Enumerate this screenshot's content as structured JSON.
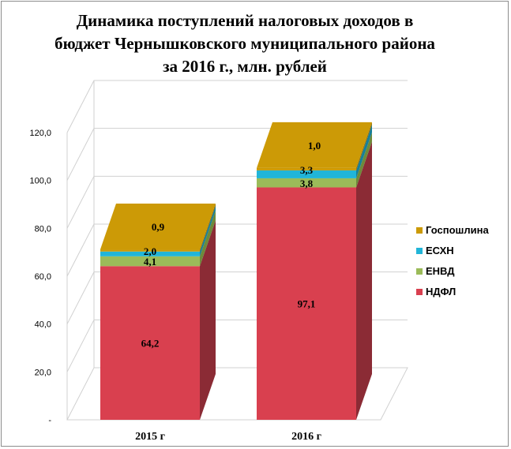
{
  "chart_data": {
    "type": "bar",
    "stacked": true,
    "style": "3d",
    "title": "Динамика поступлений налоговых доходов в бюджет Чернышковского муниципального района за 2016 г., млн. рублей",
    "categories": [
      "2015 г",
      "2016 г"
    ],
    "series": [
      {
        "name": "НДФЛ",
        "values": [
          64.2,
          97.1
        ],
        "labels": [
          "64,2",
          "97,1"
        ],
        "color": "#d9404f",
        "side": "#8b2b35"
      },
      {
        "name": "ЕНВД",
        "values": [
          4.1,
          3.8
        ],
        "labels": [
          "4,1",
          "3,8"
        ],
        "color": "#9bbb59",
        "side": "#6d8a3a"
      },
      {
        "name": "ЕСХН",
        "values": [
          2.0,
          3.3
        ],
        "labels": [
          "2,0",
          "3,3"
        ],
        "color": "#21b5d8",
        "side": "#177f98"
      },
      {
        "name": "Госпошлина",
        "values": [
          0.9,
          1.0
        ],
        "labels": [
          "0,9",
          "1,0"
        ],
        "color": "#cc9a06",
        "side": "#8f6c04"
      }
    ],
    "ylim": [
      0,
      120
    ],
    "yticks": [
      "-",
      "20,0",
      "40,0",
      "60,0",
      "80,0",
      "100,0",
      "120,0"
    ],
    "grid": true,
    "legend": "right"
  }
}
